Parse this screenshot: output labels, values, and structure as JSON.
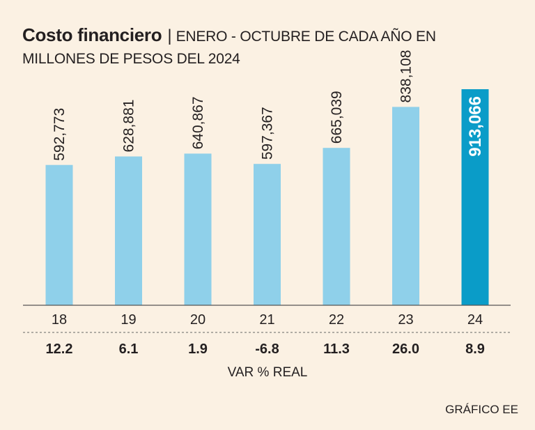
{
  "header": {
    "title": "Costo financiero",
    "separator": "|",
    "subtitle_line1": "ENERO - OCTUBRE DE CADA AÑO EN",
    "subtitle_line2": "MILLONES DE PESOS DEL 2024"
  },
  "chart_data": {
    "type": "bar",
    "title": "Costo financiero",
    "subtitle": "ENERO - OCTUBRE DE CADA AÑO EN MILLONES DE PESOS DEL 2024",
    "categories": [
      "18",
      "19",
      "20",
      "21",
      "22",
      "23",
      "24"
    ],
    "values": [
      592773,
      628881,
      640867,
      597367,
      665039,
      838108,
      913066
    ],
    "value_labels": [
      "592,773",
      "628,881",
      "640,867",
      "597,367",
      "665,039",
      "838,108",
      "913,066"
    ],
    "highlight_index": 6,
    "ylim": [
      0,
      913066
    ],
    "grid": false,
    "secondary_row": {
      "label": "VAR % REAL",
      "values": [
        "12.2",
        "6.1",
        "1.9",
        "-6.8",
        "11.3",
        "26.0",
        "8.9"
      ]
    },
    "colors": {
      "bar": "#8fd0ea",
      "bar_highlight": "#0a9cc8",
      "axis": "#555555",
      "text": "#231f20",
      "highlight_text": "#ffffff"
    }
  },
  "footer": {
    "var_label": "VAR % REAL",
    "credit": "GRÁFICO EE"
  }
}
